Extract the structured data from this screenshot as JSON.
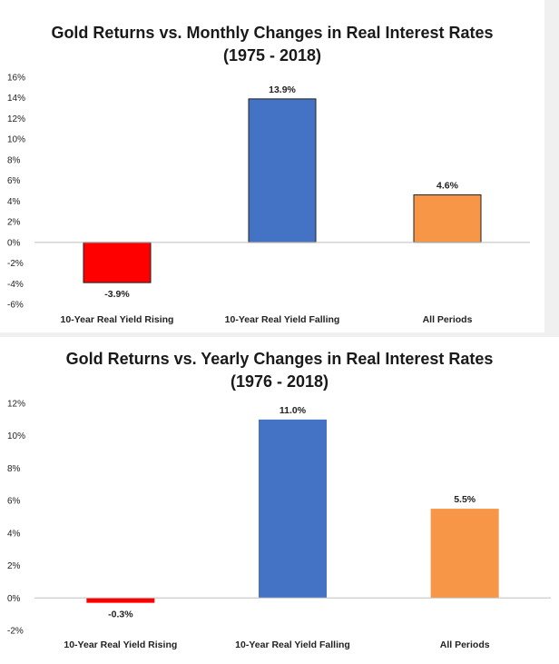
{
  "chart_data": [
    {
      "type": "bar",
      "title": "Gold Returns vs. Monthly Changes in Real Interest Rates",
      "subtitle": "(1975 - 2018)",
      "categories": [
        "10-Year Real Yield Rising",
        "10-Year Real Yield Falling",
        "All Periods"
      ],
      "values": [
        -3.9,
        13.9,
        4.6
      ],
      "data_labels": [
        "-3.9%",
        "13.9%",
        "4.6%"
      ],
      "colors": [
        "#ff0000",
        "#4472c4",
        "#f79646"
      ],
      "ylim": [
        -6,
        16
      ],
      "yticks": [
        16,
        14,
        12,
        10,
        8,
        6,
        4,
        2,
        0,
        -2,
        -4,
        -6
      ],
      "ytick_labels": [
        "16%",
        "14%",
        "12%",
        "10%",
        "8%",
        "6%",
        "4%",
        "2%",
        "0%",
        "-2%",
        "-4%",
        "-6%"
      ],
      "grid": false,
      "legend": "none"
    },
    {
      "type": "bar",
      "title": "Gold Returns vs. Yearly Changes in Real Interest Rates",
      "subtitle": "(1976 - 2018)",
      "categories": [
        "10-Year Real Yield Rising",
        "10-Year Real Yield Falling",
        "All Periods"
      ],
      "values": [
        -0.3,
        11.0,
        5.5
      ],
      "data_labels": [
        "-0.3%",
        "11.0%",
        "5.5%"
      ],
      "colors": [
        "#ff0000",
        "#4472c4",
        "#f79646"
      ],
      "ylim": [
        -2,
        12
      ],
      "yticks": [
        12,
        10,
        8,
        6,
        4,
        2,
        0,
        -2
      ],
      "ytick_labels": [
        "12%",
        "10%",
        "8%",
        "6%",
        "4%",
        "2%",
        "0%",
        "-2%"
      ],
      "grid": false,
      "legend": "none"
    }
  ]
}
